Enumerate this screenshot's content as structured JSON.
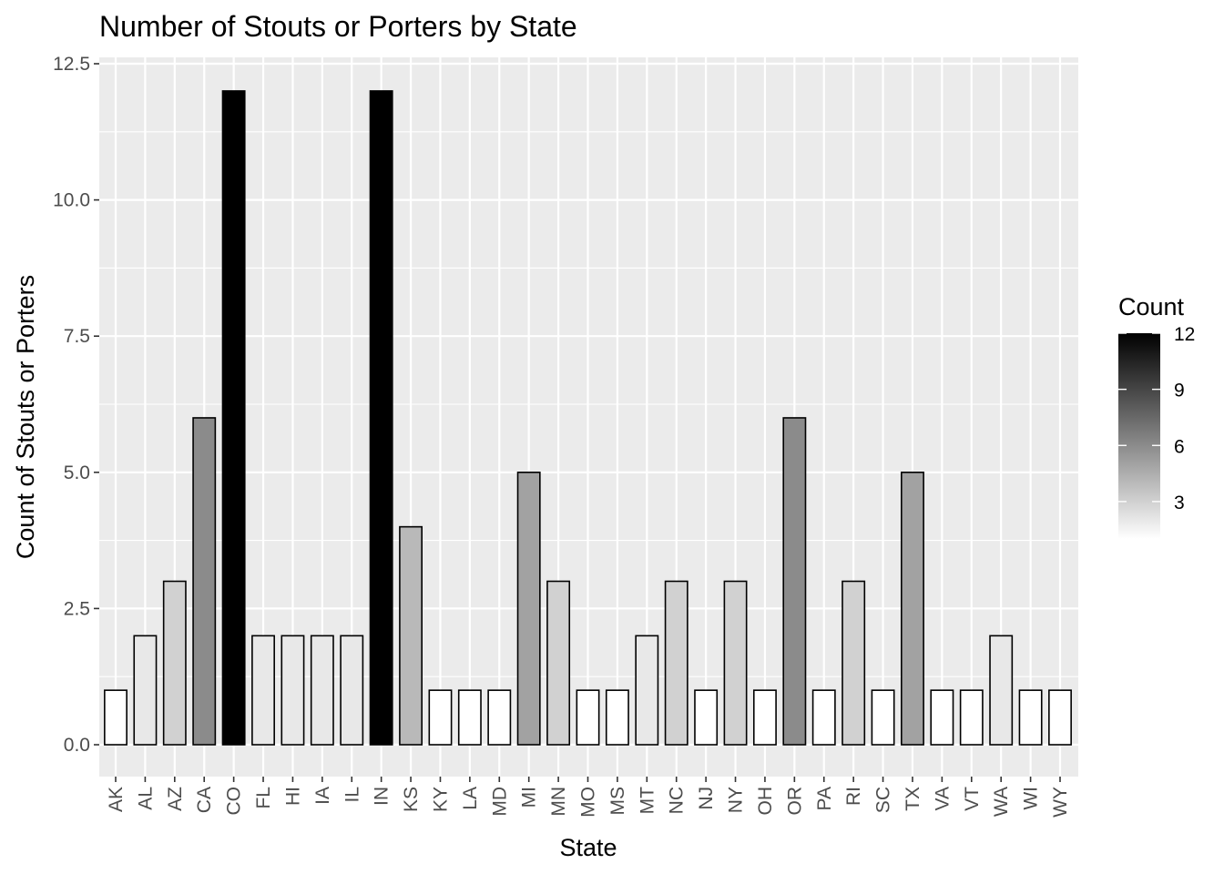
{
  "chart_data": {
    "type": "bar",
    "title": "Number of Stouts or Porters by State",
    "xlabel": "State",
    "ylabel": "Count of Stouts or Porters",
    "categories": [
      "AK",
      "AL",
      "AZ",
      "CA",
      "CO",
      "FL",
      "HI",
      "IA",
      "IL",
      "IN",
      "KS",
      "KY",
      "LA",
      "MD",
      "MI",
      "MN",
      "MO",
      "MS",
      "MT",
      "NC",
      "NJ",
      "NY",
      "OH",
      "OR",
      "PA",
      "RI",
      "SC",
      "TX",
      "VA",
      "VT",
      "WA",
      "WI",
      "WY"
    ],
    "values": [
      1,
      2,
      3,
      6,
      12,
      2,
      2,
      2,
      2,
      12,
      4,
      1,
      1,
      1,
      5,
      3,
      1,
      1,
      2,
      3,
      1,
      3,
      1,
      6,
      1,
      3,
      1,
      5,
      1,
      1,
      2,
      1,
      1
    ],
    "ylim": [
      0,
      12.5
    ],
    "yticks": [
      0,
      2.5,
      5,
      7.5,
      10,
      12.5
    ],
    "ytick_labels": [
      "0.0",
      "2.5",
      "5.0",
      "7.5",
      "10.0",
      "12.5"
    ],
    "grid": true,
    "legend": {
      "title": "Count",
      "placement": "right",
      "type": "colorbar",
      "range": [
        1,
        12
      ],
      "ticks": [
        3,
        6,
        9,
        12
      ],
      "tick_labels": [
        "3",
        "6",
        "9",
        "12"
      ],
      "low_color": "#ffffff",
      "high_color": "#000000"
    },
    "colors": {
      "panel_background": "#ebebeb",
      "gridline": "#ffffff",
      "bar_outline": "#000000"
    }
  }
}
